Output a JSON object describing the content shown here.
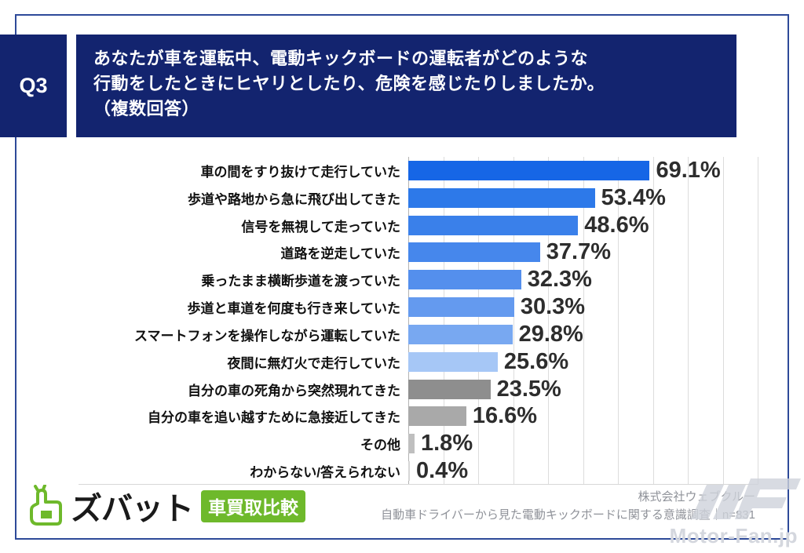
{
  "header": {
    "question_number": "Q3",
    "question_text_lines": [
      "あなたが車を運転中、電動キックボードの運転者がどのような",
      "行動をしたときにヒヤリとしたり、危険を感じたりしましたか。",
      "（複数回答）"
    ]
  },
  "chart_data": {
    "type": "bar",
    "orientation": "horizontal",
    "title": "あなたが車を運転中、電動キックボードの運転者がどのような行動をしたときにヒヤリとしたり、危険を感じたりしましたか。（複数回答）",
    "unit": "%",
    "xlim": [
      0,
      100
    ],
    "gridline_interval": 10,
    "grid": true,
    "categories": [
      "車の間をすり抜けて走行していた",
      "歩道や路地から急に飛び出してきた",
      "信号を無視して走っていた",
      "道路を逆走していた",
      "乗ったまま横断歩道を渡っていた",
      "歩道と車道を何度も行き来していた",
      "スマートフォンを操作しながら運転していた",
      "夜間に無灯火で走行していた",
      "自分の車の死角から突然現れてきた",
      "自分の車を追い越すために急接近してきた",
      "その他",
      "わからない/答えられない"
    ],
    "values": [
      69.1,
      53.4,
      48.6,
      37.7,
      32.3,
      30.3,
      29.8,
      25.6,
      23.5,
      16.6,
      1.8,
      0.4
    ],
    "bar_colors": [
      "#1666e6",
      "#2d79e9",
      "#3a80ea",
      "#4687ec",
      "#548fed",
      "#649aef",
      "#78a8f1",
      "#a6c7f6",
      "#8e8e8e",
      "#a9a9a9",
      "#bfbfbf",
      "#d6d6d6"
    ]
  },
  "footer": {
    "logo": {
      "icon": "zubat-hand-icon",
      "brand": "ズバット",
      "badge": "車買取比較",
      "brand_color": "#6eb92b"
    },
    "source_line1": "株式会社ウェブクルー",
    "source_line2": "自動車ドライバーから見た電動キックボードに関する意識調査｜n=831",
    "watermark": "Motor-Fan.jp"
  },
  "colors": {
    "header_navy": "#13246f",
    "frame_border": "#2e4a99",
    "gridline": "#dcdcdc",
    "value_text": "#2d2d2d",
    "source_text": "#8f9299",
    "watermark_gray": "#d4d7de"
  }
}
